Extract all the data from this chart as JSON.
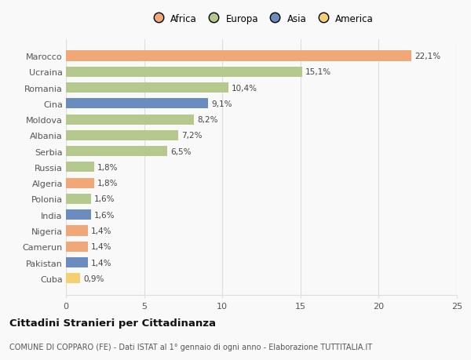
{
  "categories": [
    "Marocco",
    "Ucraina",
    "Romania",
    "Cina",
    "Moldova",
    "Albania",
    "Serbia",
    "Russia",
    "Algeria",
    "Polonia",
    "India",
    "Nigeria",
    "Camerun",
    "Pakistan",
    "Cuba"
  ],
  "values": [
    22.1,
    15.1,
    10.4,
    9.1,
    8.2,
    7.2,
    6.5,
    1.8,
    1.8,
    1.6,
    1.6,
    1.4,
    1.4,
    1.4,
    0.9
  ],
  "labels": [
    "22,1%",
    "15,1%",
    "10,4%",
    "9,1%",
    "8,2%",
    "7,2%",
    "6,5%",
    "1,8%",
    "1,8%",
    "1,6%",
    "1,6%",
    "1,4%",
    "1,4%",
    "1,4%",
    "0,9%"
  ],
  "continents": [
    "Africa",
    "Europa",
    "Europa",
    "Asia",
    "Europa",
    "Europa",
    "Europa",
    "Europa",
    "Africa",
    "Europa",
    "Asia",
    "Africa",
    "Africa",
    "Asia",
    "America"
  ],
  "colors": {
    "Africa": "#F0A878",
    "Europa": "#B5C98E",
    "Asia": "#6B8CBE",
    "America": "#F5D070"
  },
  "legend_order": [
    "Africa",
    "Europa",
    "Asia",
    "America"
  ],
  "title": "Cittadini Stranieri per Cittadinanza",
  "subtitle": "COMUNE DI COPPARO (FE) - Dati ISTAT al 1° gennaio di ogni anno - Elaborazione TUTTITALIA.IT",
  "xlim": [
    0,
    25
  ],
  "xticks": [
    0,
    5,
    10,
    15,
    20,
    25
  ],
  "background_color": "#f9f9f9",
  "grid_color": "#dddddd"
}
